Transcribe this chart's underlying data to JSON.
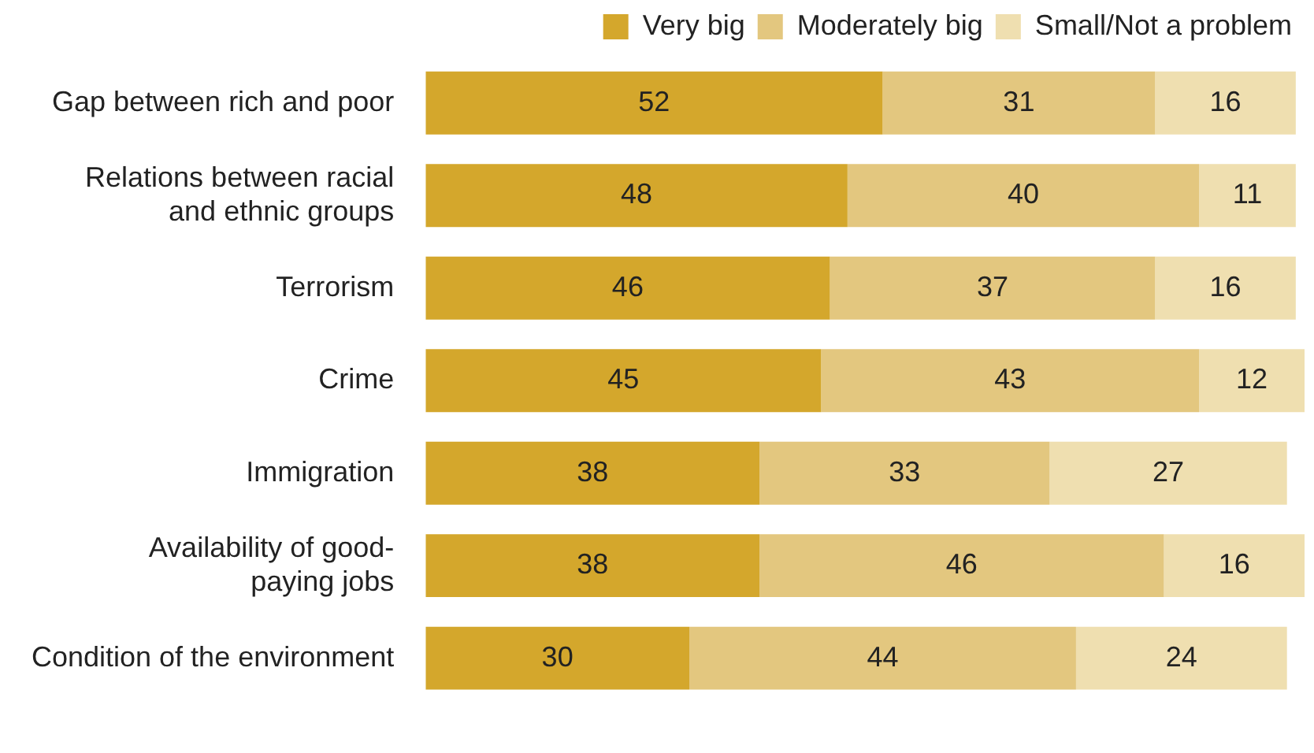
{
  "chart_data": {
    "type": "bar",
    "orientation": "horizontal",
    "stacked": true,
    "data_labels": true,
    "legend": "top right",
    "grid": false,
    "tick_labels": "y",
    "categories": [
      "Gap between rich and poor",
      "Relations between racial\nand ethnic groups",
      "Terrorism",
      "Crime",
      "Immigration",
      "Availability of good-\npaying jobs",
      "Condition of the environment"
    ],
    "series": [
      {
        "name": "Very big",
        "color": "#d4a72c",
        "values": [
          52,
          48,
          46,
          45,
          38,
          38,
          30
        ]
      },
      {
        "name": "Moderately big",
        "color": "#e3c77f",
        "values": [
          31,
          40,
          37,
          43,
          33,
          46,
          44
        ]
      },
      {
        "name": "Small/Not a problem",
        "color": "#efdfb0",
        "values": [
          16,
          11,
          16,
          12,
          27,
          16,
          24
        ]
      }
    ]
  }
}
